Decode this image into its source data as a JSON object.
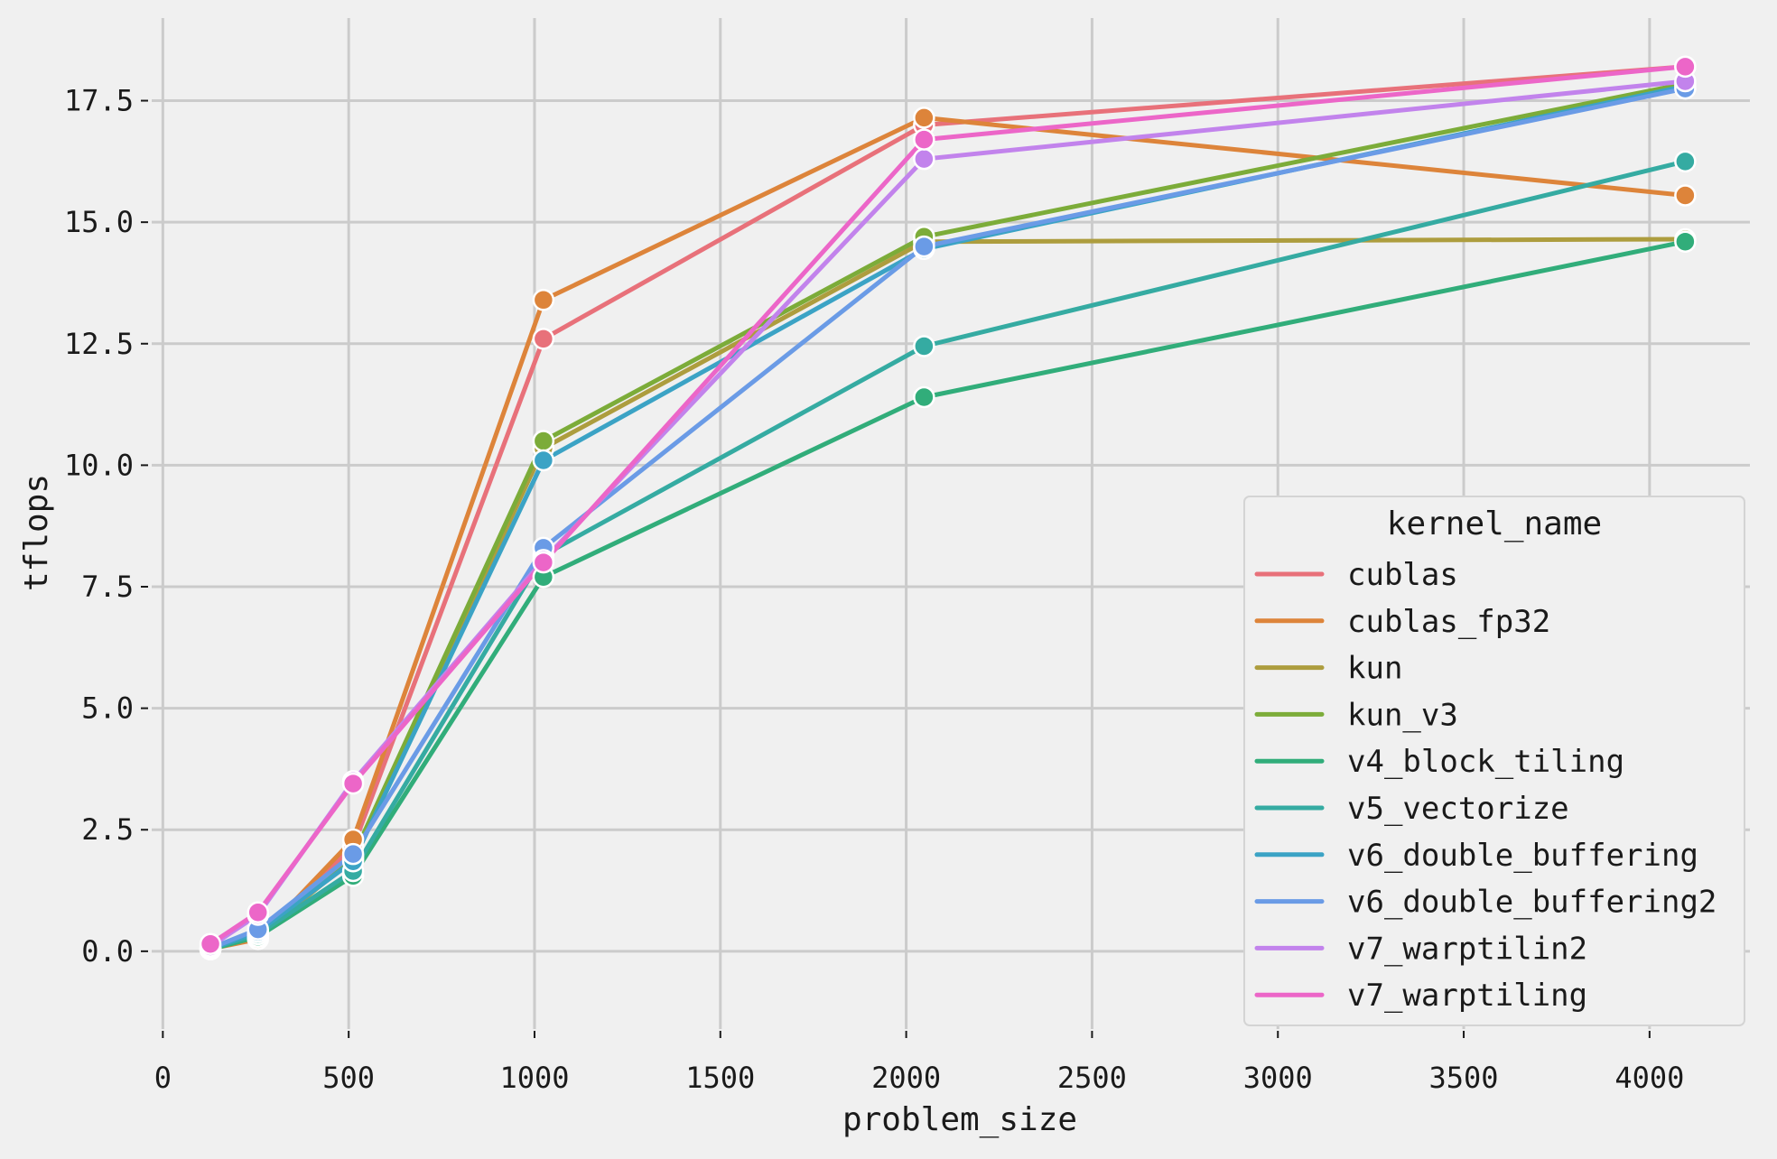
{
  "chart_data": {
    "type": "line",
    "title": "",
    "xlabel": "problem_size",
    "ylabel": "tflops",
    "xlim": [
      -30,
      4270
    ],
    "ylim": [
      -1.6,
      19.2
    ],
    "xticks": [
      0,
      500,
      1000,
      1500,
      2000,
      2500,
      3000,
      3500,
      4000
    ],
    "xtick_labels": [
      "0",
      "500",
      "1000",
      "1500",
      "2000",
      "2500",
      "3000",
      "3500",
      "4000"
    ],
    "yticks": [
      0,
      2.5,
      5,
      7.5,
      10,
      12.5,
      15,
      17.5
    ],
    "ytick_labels": [
      "0.0",
      "2.5",
      "5.0",
      "7.5",
      "10.0",
      "12.5",
      "15.0",
      "17.5"
    ],
    "grid": true,
    "legend": {
      "title": "kernel_name",
      "position": "lower-right"
    },
    "x": [
      128,
      256,
      512,
      1024,
      2048,
      4096
    ],
    "series": [
      {
        "name": "cublas",
        "color": "#e8717a",
        "values": [
          0.06,
          0.35,
          2.15,
          12.6,
          17.0,
          18.2
        ]
      },
      {
        "name": "cublas_fp32",
        "color": "#dd843a",
        "values": [
          0.05,
          0.25,
          2.3,
          13.4,
          17.15,
          15.55
        ]
      },
      {
        "name": "kun",
        "color": "#ad9d3e",
        "values": [
          0.04,
          0.3,
          1.9,
          10.35,
          14.6,
          14.65
        ]
      },
      {
        "name": "kun_v3",
        "color": "#7cac39",
        "values": [
          0.04,
          0.32,
          1.95,
          10.5,
          14.7,
          17.85
        ]
      },
      {
        "name": "v4_block_tiling",
        "color": "#31ad7a",
        "values": [
          0.04,
          0.3,
          1.55,
          7.7,
          11.4,
          14.6
        ]
      },
      {
        "name": "v5_vectorize",
        "color": "#35aba2",
        "values": [
          0.05,
          0.35,
          1.65,
          8.15,
          12.45,
          16.25
        ]
      },
      {
        "name": "v6_double_buffering",
        "color": "#3ba3c5",
        "values": [
          0.05,
          0.4,
          1.85,
          10.1,
          14.45,
          17.8
        ]
      },
      {
        "name": "v6_double_buffering2",
        "color": "#6a9be6",
        "values": [
          0.06,
          0.45,
          2.0,
          8.3,
          14.5,
          17.75
        ]
      },
      {
        "name": "v7_warptilin2",
        "color": "#c283ec",
        "values": [
          0.1,
          0.75,
          3.5,
          8.05,
          16.3,
          17.9
        ]
      },
      {
        "name": "v7_warptiling",
        "color": "#ec66c8",
        "values": [
          0.15,
          0.8,
          3.45,
          8.0,
          16.7,
          18.2
        ]
      }
    ]
  }
}
